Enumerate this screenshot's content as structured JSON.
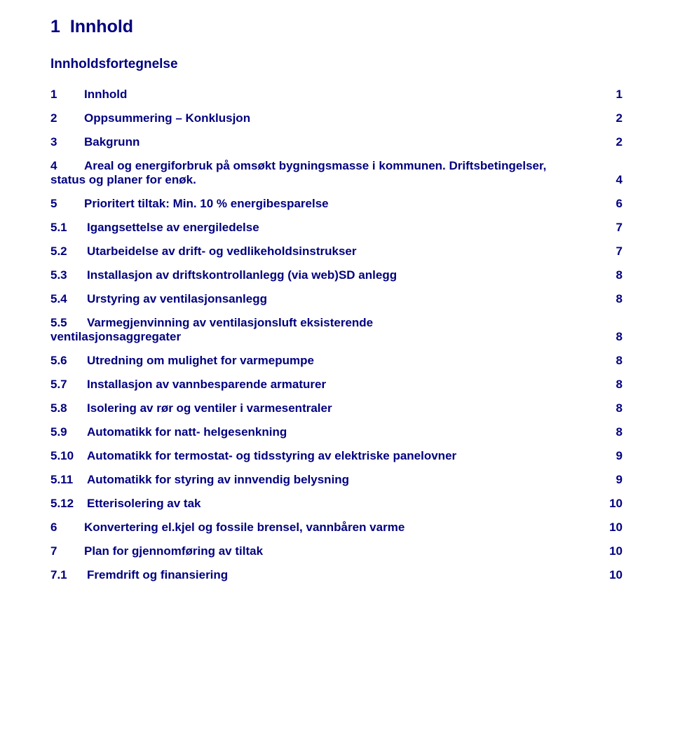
{
  "colors": {
    "text": "#000080",
    "background": "#ffffff"
  },
  "typography": {
    "font_family": "Verdana, Geneva, sans-serif",
    "h1_size_pt": 19,
    "h2_size_pt": 14,
    "body_size_pt": 13,
    "weight": "bold"
  },
  "heading": {
    "number": "1",
    "title": "Innhold"
  },
  "subheading": "Innholdsfortegnelse",
  "toc": [
    {
      "num": "1",
      "label": "Innhold",
      "page": "1"
    },
    {
      "num": "2",
      "label": "Oppsummering – Konklusjon",
      "page": "2"
    },
    {
      "num": "3",
      "label": "Bakgrunn",
      "page": "2"
    },
    {
      "num": "4",
      "label_line1": "Areal og energiforbruk på omsøkt bygningsmasse i kommunen. Driftsbetingelser,",
      "label_line2": "status og planer for enøk.",
      "page": "4",
      "wrap": true
    },
    {
      "num": "5",
      "label": "Prioritert tiltak: Min. 10 % energibesparelse",
      "page": "6"
    },
    {
      "num": "5.1",
      "label": "Igangsettelse av energiledelse",
      "page": "7",
      "sub": true
    },
    {
      "num": "5.2",
      "label": "Utarbeidelse av drift- og vedlikeholdsinstrukser",
      "page": "7",
      "sub": true
    },
    {
      "num": "5.3",
      "label": "Installasjon av driftskontrollanlegg (via web)SD anlegg",
      "page": "8",
      "sub": true
    },
    {
      "num": "5.4",
      "label": "Urstyring av ventilasjonsanlegg",
      "page": "8",
      "sub": true
    },
    {
      "num": "5.5",
      "label_line1": "Varmegjenvinning av ventilasjonsluft eksisterende",
      "label_line2": "ventilasjonsaggregater",
      "page": "8",
      "sub": true,
      "wrap": true
    },
    {
      "num": "5.6",
      "label": "Utredning om mulighet for varmepumpe",
      "page": "8",
      "sub": true
    },
    {
      "num": "5.7",
      "label": "Installasjon av vannbesparende armaturer",
      "page": "8",
      "sub": true
    },
    {
      "num": "5.8",
      "label": "Isolering av rør og ventiler i varmesentraler",
      "page": "8",
      "sub": true
    },
    {
      "num": "5.9",
      "label": "Automatikk for natt- helgesenkning",
      "page": "8",
      "sub": true
    },
    {
      "num": "5.10",
      "label": "Automatikk for termostat- og tidsstyring av elektriske panelovner",
      "page": "9",
      "sub": true
    },
    {
      "num": "5.11",
      "label": "Automatikk for styring av innvendig belysning",
      "page": "9",
      "sub": true
    },
    {
      "num": "5.12",
      "label": "Etterisolering av tak",
      "page": "10",
      "sub": true
    },
    {
      "num": "6",
      "label": "Konvertering el.kjel og fossile brensel, vannbåren varme",
      "page": "10"
    },
    {
      "num": "7",
      "label": "Plan for gjennomføring av tiltak",
      "page": "10"
    },
    {
      "num": "7.1",
      "label": "Fremdrift og finansiering",
      "page": "10",
      "sub": true
    }
  ]
}
